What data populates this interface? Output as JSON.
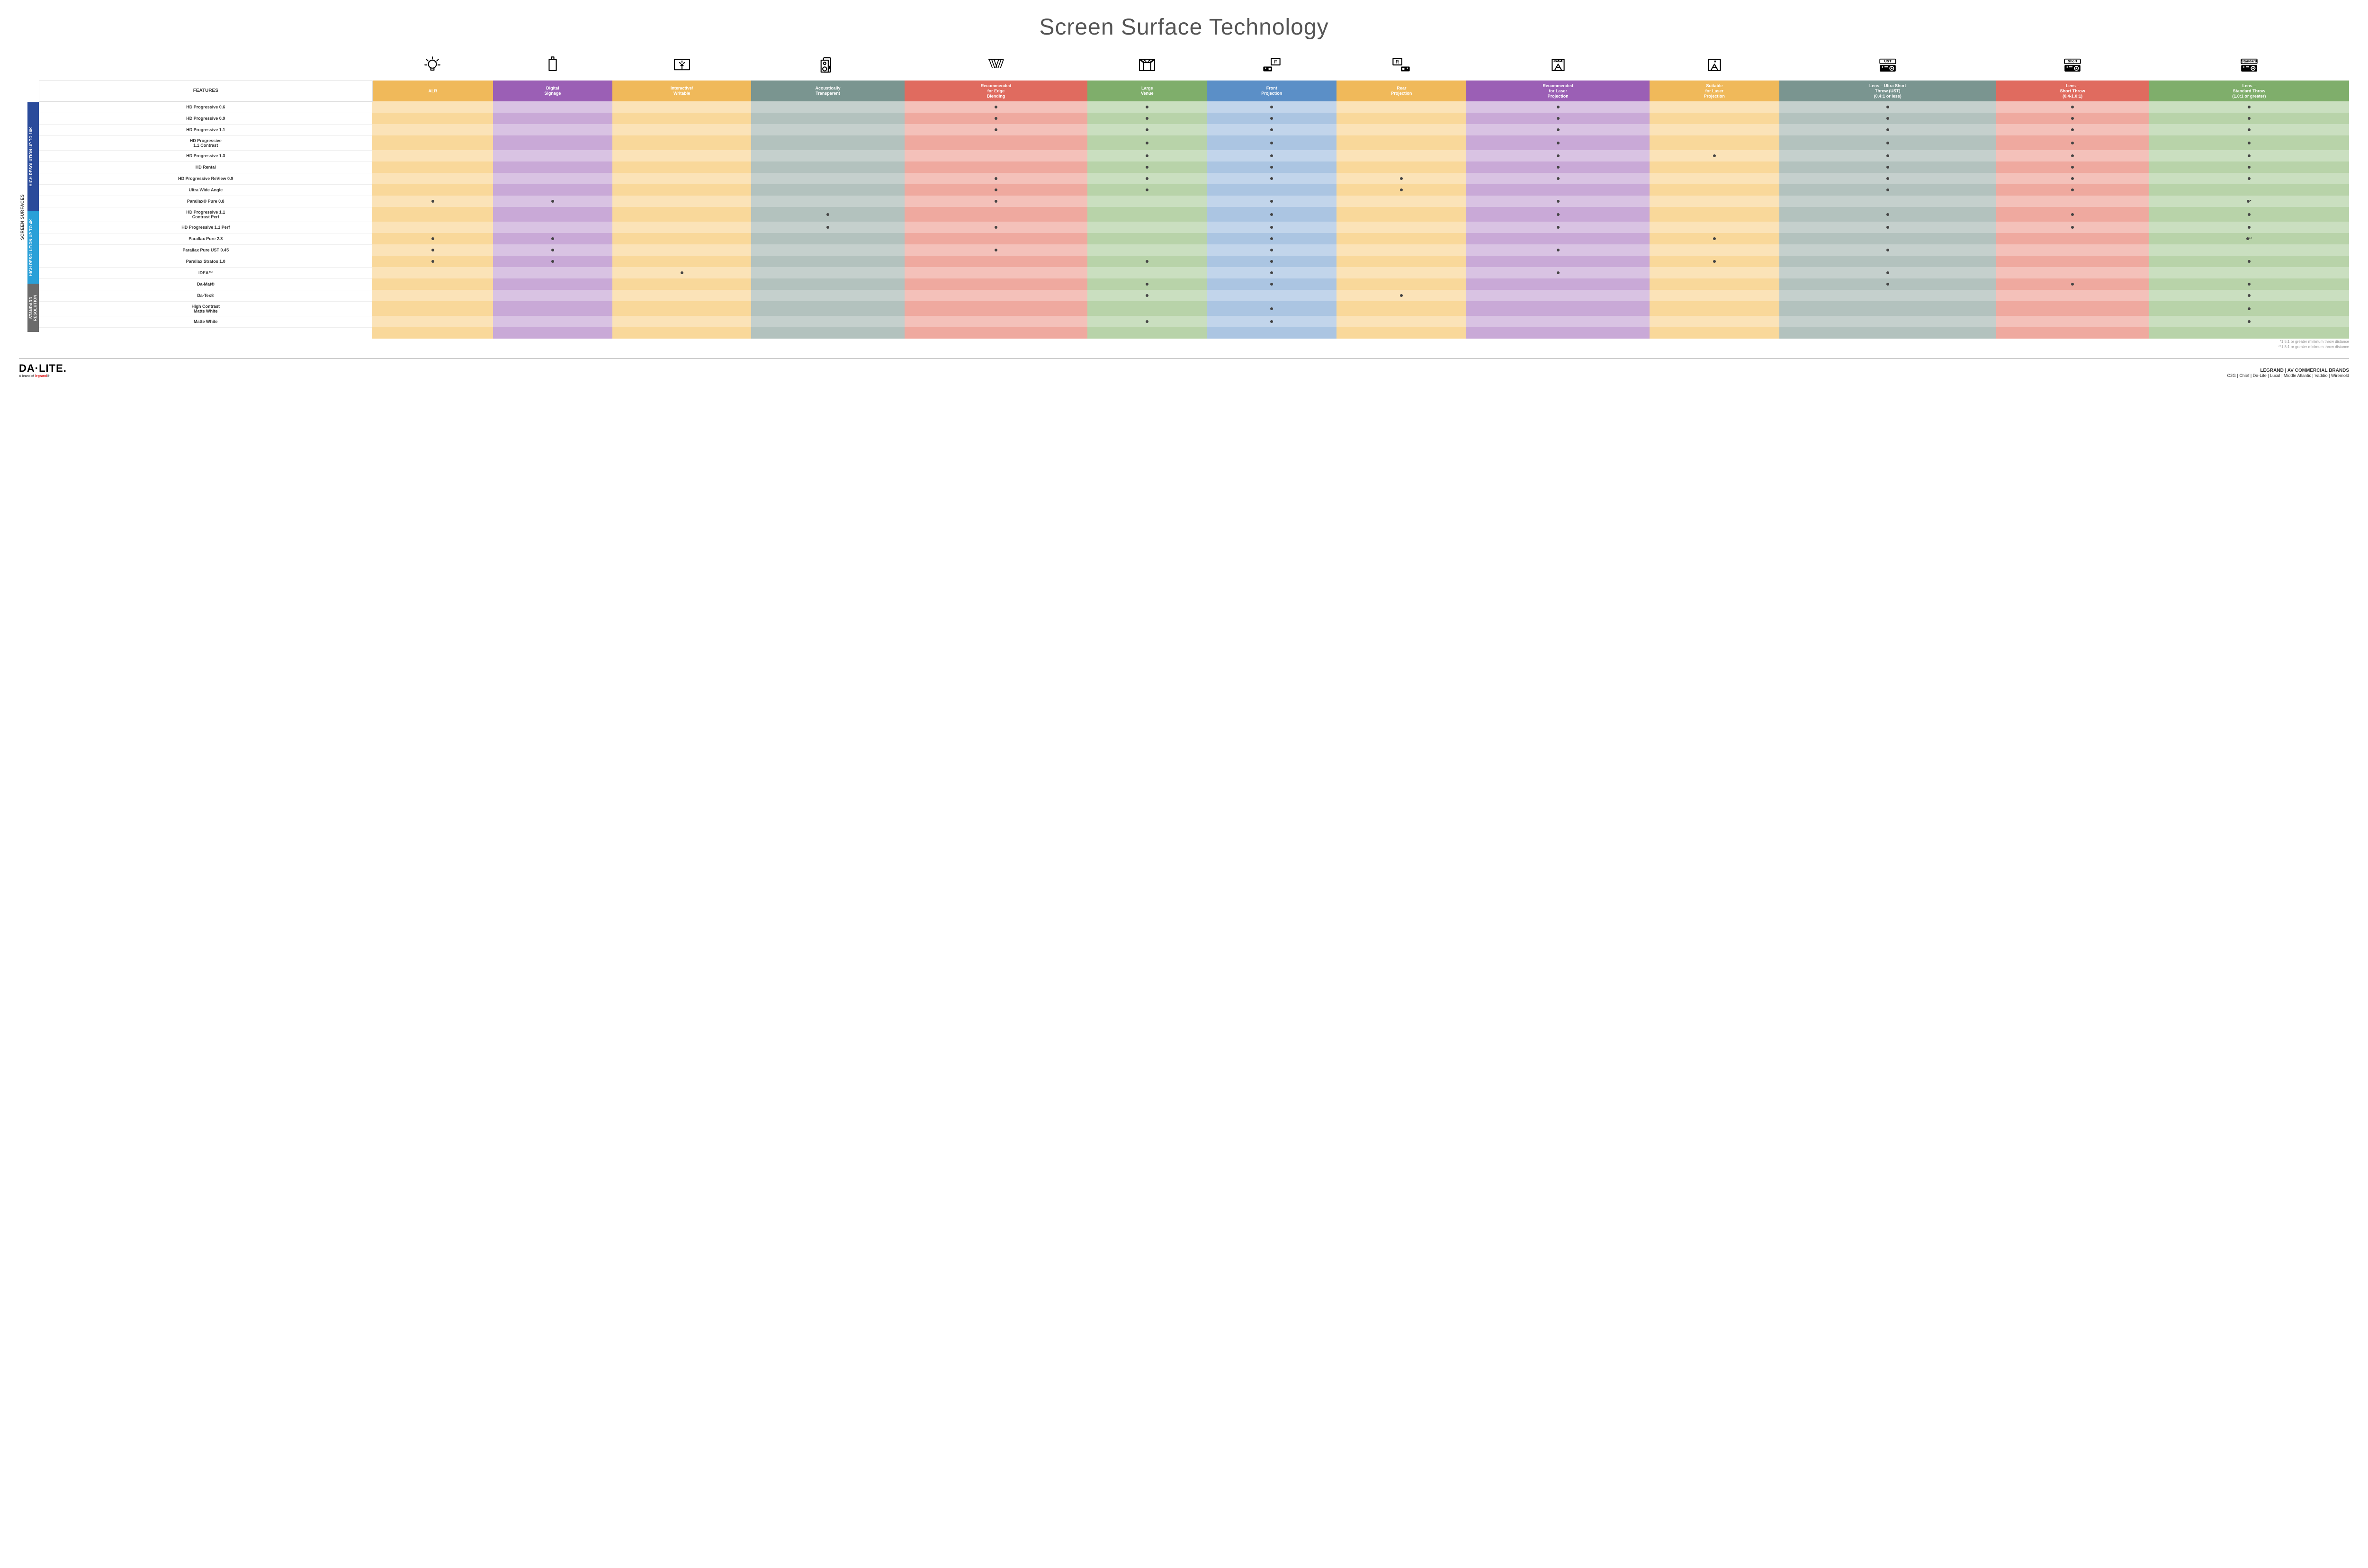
{
  "title": "Screen Surface Technology",
  "outerLabel": "SCREEN SURFACES",
  "featuresHeader": "FEATURES",
  "columns": [
    {
      "key": "alr",
      "label": "ALR",
      "bg": "#f0b95a"
    },
    {
      "key": "ds",
      "label": "Digital\nSignage",
      "bg": "#9b5fb5"
    },
    {
      "key": "iw",
      "label": "Interactive/\nWritable",
      "bg": "#f0b95a"
    },
    {
      "key": "at",
      "label": "Acoustically\nTransparent",
      "bg": "#7a9590"
    },
    {
      "key": "eb",
      "label": "Recommended\nfor Edge\nBlending",
      "bg": "#e06b5f"
    },
    {
      "key": "lv",
      "label": "Large\nVenue",
      "bg": "#7fae6b"
    },
    {
      "key": "fp",
      "label": "Front\nProjection",
      "bg": "#5b8fc7"
    },
    {
      "key": "rp",
      "label": "Rear\nProjection",
      "bg": "#f0b95a"
    },
    {
      "key": "rlp",
      "label": "Recommended\nfor Laser\nProjection",
      "bg": "#9b5fb5"
    },
    {
      "key": "slp",
      "label": "Suitable\nfor Laser\nProjection",
      "bg": "#f0b95a"
    },
    {
      "key": "ust",
      "label": "Lens – Ultra Short\nThrow (UST)\n(0.4:1 or less)",
      "bg": "#7a9590"
    },
    {
      "key": "st",
      "label": "Lens –\nShort Throw\n(0.4-1.0:1)",
      "bg": "#e06b5f"
    },
    {
      "key": "std",
      "label": "Lens –\nStandard Throw\n(1.0:1 or greater)",
      "bg": "#7fae6b"
    }
  ],
  "tints": {
    "alr": [
      "#fbe3b8",
      "#f9d89a"
    ],
    "ds": [
      "#d9c3e3",
      "#c9a9d7"
    ],
    "iw": [
      "#fbe3b8",
      "#f9d89a"
    ],
    "at": [
      "#c5d0cd",
      "#b3c2be"
    ],
    "eb": [
      "#f4c1ba",
      "#efa99f"
    ],
    "lv": [
      "#cadfc0",
      "#b8d3a9"
    ],
    "fp": [
      "#c2d5eb",
      "#abc5e2"
    ],
    "rp": [
      "#fbe3b8",
      "#f9d89a"
    ],
    "rlp": [
      "#d9c3e3",
      "#c9a9d7"
    ],
    "slp": [
      "#fbe3b8",
      "#f9d89a"
    ],
    "ust": [
      "#c5d0cd",
      "#b3c2be"
    ],
    "st": [
      "#f4c1ba",
      "#efa99f"
    ],
    "std": [
      "#cadfc0",
      "#b8d3a9"
    ]
  },
  "groups": [
    {
      "label": "HIGH RESOLUTION UP TO 16K",
      "bg": "#2a4b9b",
      "rows": [
        {
          "name": "HD Progressive 0.6",
          "dots": {
            "eb": "•",
            "lv": "•",
            "fp": "•",
            "rlp": "•",
            "ust": "•",
            "st": "•",
            "std": "•"
          }
        },
        {
          "name": "HD Progressive 0.9",
          "dots": {
            "eb": "•",
            "lv": "•",
            "fp": "•",
            "rlp": "•",
            "ust": "•",
            "st": "•",
            "std": "•"
          }
        },
        {
          "name": "HD Progressive 1.1",
          "dots": {
            "eb": "•",
            "lv": "•",
            "fp": "•",
            "rlp": "•",
            "ust": "•",
            "st": "•",
            "std": "•"
          }
        },
        {
          "name": "HD Progressive\n1.1 Contrast",
          "dots": {
            "lv": "•",
            "fp": "•",
            "rlp": "•",
            "ust": "•",
            "st": "•",
            "std": "•"
          }
        },
        {
          "name": "HD Progressive 1.3",
          "dots": {
            "lv": "•",
            "fp": "•",
            "rlp": "•",
            "slp": "•",
            "ust": "•",
            "st": "•",
            "std": "•"
          }
        },
        {
          "name": "HD Rental",
          "dots": {
            "lv": "•",
            "fp": "•",
            "rlp": "•",
            "ust": "•",
            "st": "•",
            "std": "•"
          }
        },
        {
          "name": "HD Progressive ReView 0.9",
          "dots": {
            "eb": "•",
            "lv": "•",
            "fp": "•",
            "rp": "•",
            "rlp": "•",
            "ust": "•",
            "st": "•",
            "std": "•"
          }
        },
        {
          "name": "Ultra Wide Angle",
          "dots": {
            "eb": "•",
            "lv": "•",
            "rp": "•",
            "ust": "•",
            "st": "•"
          }
        },
        {
          "name": "Parallax® Pure 0.8",
          "dots": {
            "alr": "•",
            "ds": "•",
            "eb": "•",
            "fp": "•",
            "rlp": "•",
            "std": "•*"
          }
        }
      ]
    },
    {
      "label": "HIGH RESOLUTION UP TO 4K",
      "bg": "#2aa0d8",
      "rows": [
        {
          "name": "HD Progressive 1.1\nContrast Perf",
          "dots": {
            "at": "•",
            "fp": "•",
            "rlp": "•",
            "ust": "•",
            "st": "•",
            "std": "•"
          }
        },
        {
          "name": "HD Progressive 1.1 Perf",
          "dots": {
            "at": "•",
            "eb": "•",
            "fp": "•",
            "rlp": "•",
            "ust": "•",
            "st": "•",
            "std": "•"
          }
        },
        {
          "name": "Parallax Pure 2.3",
          "dots": {
            "alr": "•",
            "ds": "•",
            "fp": "•",
            "slp": "•",
            "std": "•**"
          }
        },
        {
          "name": "Parallax Pure UST 0.45",
          "dots": {
            "alr": "•",
            "ds": "•",
            "eb": "•",
            "fp": "•",
            "rlp": "•",
            "ust": "•"
          }
        },
        {
          "name": "Parallax Stratos 1.0",
          "dots": {
            "alr": "•",
            "ds": "•",
            "lv": "•",
            "fp": "•",
            "slp": "•",
            "std": "•"
          }
        },
        {
          "name": "IDEA™",
          "dots": {
            "iw": "•",
            "fp": "•",
            "rlp": "•",
            "ust": "•"
          }
        }
      ]
    },
    {
      "label": "STANDARD\nRESOLUTION",
      "bg": "#6b6b6b",
      "rows": [
        {
          "name": "Da-Mat®",
          "dots": {
            "lv": "•",
            "fp": "•",
            "ust": "•",
            "st": "•",
            "std": "•"
          }
        },
        {
          "name": "Da-Tex®",
          "dots": {
            "lv": "•",
            "rp": "•",
            "std": "•"
          }
        },
        {
          "name": "High Contrast\nMatte White",
          "dots": {
            "fp": "•",
            "std": "•"
          }
        },
        {
          "name": "Matte White",
          "dots": {
            "lv": "•",
            "fp": "•",
            "std": "•"
          }
        }
      ]
    }
  ],
  "footnotes": [
    "*1.5:1 or greater minimum throw distance",
    "**1.8:1 or greater minimum throw distance"
  ],
  "logo": {
    "main": "DA·LITE.",
    "sub": "A brand of ",
    "subBrand": "legrand"
  },
  "brandsTitle": "LEGRAND | AV COMMERCIAL BRANDS",
  "brandsList": "C2G  |  Chief  |  Da-Lite  |  Luxul  |  Middle Atlantic  |  Vaddio  |  Wiremold",
  "icons": {
    "alr": "bulb",
    "ds": "signage",
    "iw": "touch",
    "at": "speaker",
    "eb": "blend",
    "lv": "venue",
    "fp": "front",
    "rp": "rear",
    "rlp": "laser3",
    "slp": "laser1",
    "ust": "proj-ust",
    "st": "proj-short",
    "std": "proj-std"
  },
  "lensLabels": {
    "ust": "UST",
    "st": "Short",
    "std": "Standard"
  }
}
